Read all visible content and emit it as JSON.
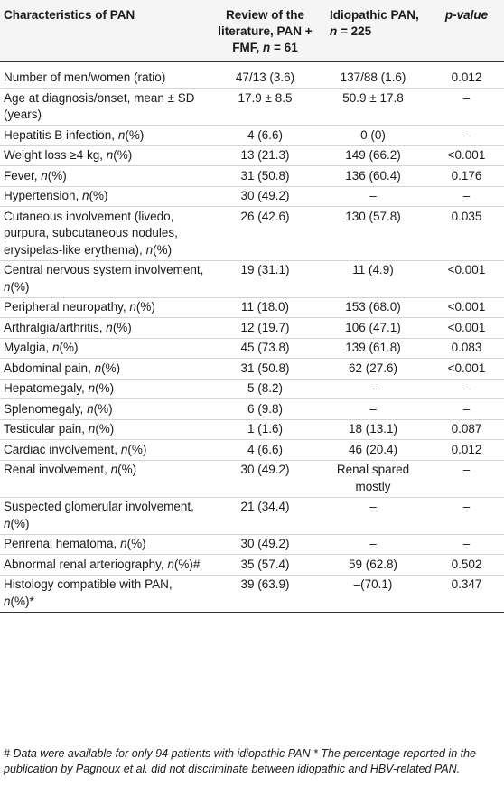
{
  "headers": {
    "col1": "Characteristics of PAN",
    "col2": "Review of the literature, PAN + FMF, n = 61",
    "col3": "Idiopathic PAN, n = 225",
    "col4": "p-value"
  },
  "rows": [
    {
      "label": "Number of men/women (ratio)",
      "lit": "47/13 (3.6)",
      "idio": "137/88 (1.6)",
      "p": "0.012"
    },
    {
      "label": "Age at diagnosis/onset, mean ± SD (years)",
      "lit": "17.9 ± 8.5",
      "idio": "50.9 ± 17.8",
      "p": "–"
    },
    {
      "label": "Hepatitis B infection, n(%)",
      "lit": "4 (6.6)",
      "idio": "0 (0)",
      "p": "–"
    },
    {
      "label": "Weight loss ≥4 kg, n(%)",
      "lit": "13 (21.3)",
      "idio": "149 (66.2)",
      "p": "<0.001"
    },
    {
      "label": "Fever, n(%)",
      "lit": "31 (50.8)",
      "idio": "136 (60.4)",
      "p": "0.176"
    },
    {
      "label": "Hypertension, n(%)",
      "lit": "30 (49.2)",
      "idio": "–",
      "p": "–"
    },
    {
      "label": "Cutaneous involvement (livedo, purpura, subcutaneous nodules, erysipelas-like erythema), n(%)",
      "lit": "26 (42.6)",
      "idio": "130 (57.8)",
      "p": "0.035"
    },
    {
      "label": "Central nervous system involvement, n(%)",
      "lit": "19 (31.1)",
      "idio": "11 (4.9)",
      "p": "<0.001"
    },
    {
      "label": "Peripheral neuropathy, n(%)",
      "lit": "11 (18.0)",
      "idio": "153 (68.0)",
      "p": "<0.001"
    },
    {
      "label": "Arthralgia/arthritis, n(%)",
      "lit": "12 (19.7)",
      "idio": "106 (47.1)",
      "p": "<0.001"
    },
    {
      "label": "Myalgia, n(%)",
      "lit": "45 (73.8)",
      "idio": "139 (61.8)",
      "p": "0.083"
    },
    {
      "label": "Abdominal pain, n(%)",
      "lit": "31 (50.8)",
      "idio": "62 (27.6)",
      "p": "<0.001"
    },
    {
      "label": "Hepatomegaly, n(%)",
      "lit": "5 (8.2)",
      "idio": "–",
      "p": "–"
    },
    {
      "label": "Splenomegaly, n(%)",
      "lit": "6 (9.8)",
      "idio": "–",
      "p": "–"
    },
    {
      "label": "Testicular pain, n(%)",
      "lit": "1 (1.6)",
      "idio": "18 (13.1)",
      "p": "0.087"
    },
    {
      "label": "Cardiac involvement, n(%)",
      "lit": "4 (6.6)",
      "idio": "46 (20.4)",
      "p": "0.012"
    },
    {
      "label": "Renal involvement, n(%)",
      "lit": "30 (49.2)",
      "idio": "Renal spared mostly",
      "p": "–"
    },
    {
      "label": "Suspected glomerular involvement, n(%)",
      "lit": "21 (34.4)",
      "idio": "–",
      "p": "–"
    },
    {
      "label": "Perirenal hematoma, n(%)",
      "lit": "30 (49.2)",
      "idio": "–",
      "p": "–"
    },
    {
      "label": "Abnormal renal arteriography, n(%)#",
      "lit": "35 (57.4)",
      "idio": "59 (62.8)",
      "p": "0.502"
    },
    {
      "label": "Histology compatible with PAN, n(%)*",
      "lit": "39 (63.9)",
      "idio": "–(70.1)",
      "p": "0.347"
    }
  ],
  "footnote": "# Data were available for only 94 patients with idiopathic PAN * The percentage reported in the publication by Pagnoux et al. did not discriminate between idiopathic and HBV-related PAN."
}
